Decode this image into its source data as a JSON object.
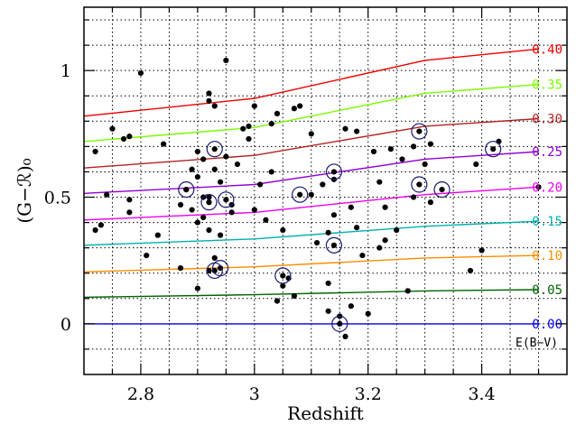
{
  "chart_data": {
    "type": "scatter",
    "xlabel": "Redshift",
    "ylabel": "(G−ℛ)₀",
    "xlim": [
      2.7,
      3.55
    ],
    "ylim": [
      -0.2,
      1.25
    ],
    "grid": true,
    "x_major_ticks": [
      2.8,
      3,
      3.2,
      3.4
    ],
    "x_tick_labels": [
      "2.8",
      "3",
      "3.2",
      "3.4"
    ],
    "x_minor_step": 0.05,
    "y_major_ticks": [
      0,
      0.5,
      1
    ],
    "y_tick_labels": [
      "0",
      "0.5",
      "1"
    ],
    "y_minor_step": 0.1,
    "reddening_title": "E(B−V)",
    "reddening_tracks": [
      {
        "name": "0.00",
        "color": "#0000ee",
        "points": [
          [
            2.7,
            0.0
          ],
          [
            3.5,
            0.0
          ]
        ]
      },
      {
        "name": "0.05",
        "color": "#006400",
        "points": [
          [
            2.7,
            0.105
          ],
          [
            3.0,
            0.115
          ],
          [
            3.3,
            0.13
          ],
          [
            3.5,
            0.135
          ]
        ]
      },
      {
        "name": "0.10",
        "color": "#ff8c00",
        "points": [
          [
            2.7,
            0.205
          ],
          [
            3.0,
            0.225
          ],
          [
            3.3,
            0.26
          ],
          [
            3.5,
            0.27
          ]
        ]
      },
      {
        "name": "0.15",
        "color": "#00b0b0",
        "points": [
          [
            2.7,
            0.31
          ],
          [
            3.0,
            0.335
          ],
          [
            3.3,
            0.385
          ],
          [
            3.5,
            0.405
          ]
        ]
      },
      {
        "name": "0.20",
        "color": "#ee00ee",
        "points": [
          [
            2.7,
            0.41
          ],
          [
            3.0,
            0.44
          ],
          [
            3.3,
            0.51
          ],
          [
            3.5,
            0.54
          ]
        ]
      },
      {
        "name": "0.25",
        "color": "#9400d3",
        "points": [
          [
            2.7,
            0.515
          ],
          [
            3.0,
            0.55
          ],
          [
            3.3,
            0.65
          ],
          [
            3.5,
            0.68
          ]
        ]
      },
      {
        "name": "0.30",
        "color": "#b22222",
        "points": [
          [
            2.7,
            0.615
          ],
          [
            3.0,
            0.665
          ],
          [
            3.3,
            0.78
          ],
          [
            3.5,
            0.81
          ]
        ]
      },
      {
        "name": "0.35",
        "color": "#7cfc00",
        "points": [
          [
            2.7,
            0.72
          ],
          [
            3.0,
            0.775
          ],
          [
            3.3,
            0.91
          ],
          [
            3.5,
            0.945
          ]
        ]
      },
      {
        "name": "0.40",
        "color": "#ee0000",
        "points": [
          [
            2.7,
            0.82
          ],
          [
            3.0,
            0.89
          ],
          [
            3.3,
            1.04
          ],
          [
            3.5,
            1.085
          ]
        ]
      }
    ],
    "galaxies": [
      [
        2.72,
        0.68
      ],
      [
        2.72,
        0.37
      ],
      [
        2.73,
        0.39
      ],
      [
        2.74,
        0.51
      ],
      [
        2.75,
        0.77
      ],
      [
        2.77,
        0.73
      ],
      [
        2.78,
        0.74
      ],
      [
        2.78,
        0.49
      ],
      [
        2.78,
        0.44
      ],
      [
        2.8,
        0.99
      ],
      [
        2.81,
        0.27
      ],
      [
        2.83,
        0.35
      ],
      [
        2.84,
        0.71
      ],
      [
        2.87,
        0.22
      ],
      [
        2.88,
        0.53
      ],
      [
        2.89,
        0.61
      ],
      [
        2.9,
        0.68
      ],
      [
        2.9,
        0.58
      ],
      [
        2.9,
        0.4
      ],
      [
        2.9,
        0.14
      ],
      [
        2.91,
        0.5
      ],
      [
        2.91,
        0.42
      ],
      [
        2.92,
        0.88
      ],
      [
        2.92,
        0.91
      ],
      [
        2.92,
        0.5
      ],
      [
        2.92,
        0.48
      ],
      [
        2.92,
        0.37
      ],
      [
        2.92,
        0.21
      ],
      [
        2.93,
        0.86
      ],
      [
        2.93,
        0.61
      ],
      [
        2.93,
        0.26
      ],
      [
        2.94,
        0.56
      ],
      [
        2.94,
        0.35
      ],
      [
        2.95,
        1.04
      ],
      [
        2.95,
        0.66
      ],
      [
        2.96,
        0.44
      ],
      [
        2.96,
        0.47
      ],
      [
        2.97,
        0.63
      ],
      [
        2.98,
        0.77
      ],
      [
        2.99,
        0.78
      ],
      [
        2.99,
        0.73
      ],
      [
        3.0,
        0.86
      ],
      [
        3.0,
        0.45
      ],
      [
        3.01,
        0.55
      ],
      [
        3.02,
        0.41
      ],
      [
        3.03,
        0.6
      ],
      [
        3.03,
        0.79
      ],
      [
        3.04,
        0.09
      ],
      [
        3.04,
        0.83
      ],
      [
        3.05,
        0.37
      ],
      [
        3.05,
        0.15
      ],
      [
        3.06,
        0.18
      ],
      [
        3.07,
        0.85
      ],
      [
        3.07,
        0.11
      ],
      [
        3.08,
        0.86
      ],
      [
        3.1,
        0.75
      ],
      [
        3.1,
        0.51
      ],
      [
        3.11,
        0.32
      ],
      [
        3.12,
        0.55
      ],
      [
        3.13,
        0.36
      ],
      [
        3.13,
        0.16
      ],
      [
        3.13,
        0.05
      ],
      [
        3.14,
        0.57
      ],
      [
        3.14,
        0.43
      ],
      [
        3.15,
        0.03
      ],
      [
        3.16,
        0.77
      ],
      [
        3.16,
        -0.05
      ],
      [
        3.17,
        0.46
      ],
      [
        3.17,
        0.07
      ],
      [
        3.18,
        0.76
      ],
      [
        3.18,
        0.38
      ],
      [
        3.19,
        0.27
      ],
      [
        3.2,
        0.04
      ],
      [
        3.21,
        0.68
      ],
      [
        3.22,
        0.3
      ],
      [
        3.22,
        0.56
      ],
      [
        3.23,
        0.46
      ],
      [
        3.23,
        0.33
      ],
      [
        3.24,
        0.69
      ],
      [
        3.25,
        0.37
      ],
      [
        3.26,
        0.65
      ],
      [
        3.27,
        0.13
      ],
      [
        3.28,
        0.5
      ],
      [
        3.28,
        0.7
      ],
      [
        3.3,
        0.63
      ],
      [
        3.31,
        0.48
      ],
      [
        3.31,
        0.71
      ],
      [
        3.38,
        0.21
      ],
      [
        3.39,
        0.63
      ],
      [
        3.4,
        0.29
      ],
      [
        3.43,
        0.72
      ],
      [
        3.5,
        0.54
      ],
      [
        2.87,
        0.47
      ],
      [
        2.89,
        0.45
      ],
      [
        2.91,
        0.65
      ]
    ],
    "highlighted": [
      [
        2.88,
        0.53
      ],
      [
        2.92,
        0.48
      ],
      [
        2.93,
        0.69
      ],
      [
        2.95,
        0.49
      ],
      [
        2.93,
        0.21
      ],
      [
        2.94,
        0.22
      ],
      [
        3.05,
        0.19
      ],
      [
        3.08,
        0.51
      ],
      [
        3.14,
        0.6
      ],
      [
        3.14,
        0.31
      ],
      [
        3.15,
        0.0
      ],
      [
        3.29,
        0.76
      ],
      [
        3.29,
        0.55
      ],
      [
        3.33,
        0.53
      ],
      [
        3.42,
        0.69
      ]
    ]
  },
  "colors": {
    "axis": "#000000",
    "grid": "#000000",
    "point": "#000000",
    "highlight_ring": "#1a1a6e"
  }
}
